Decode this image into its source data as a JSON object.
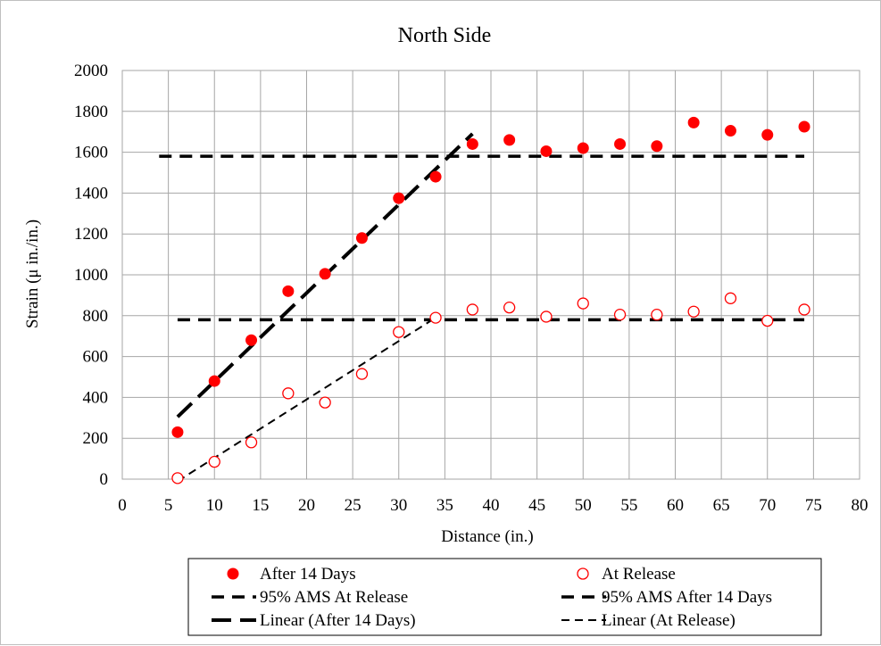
{
  "chart_data": {
    "type": "scatter",
    "title": "North Side",
    "xlabel": "Distance (in.)",
    "ylabel": "Strain (μ in./in.)",
    "xlim": [
      0,
      80
    ],
    "ylim": [
      0,
      2000
    ],
    "x_ticks": [
      0,
      5,
      10,
      15,
      20,
      25,
      30,
      35,
      40,
      45,
      50,
      55,
      60,
      65,
      70,
      75,
      80
    ],
    "y_ticks": [
      0,
      200,
      400,
      600,
      800,
      1000,
      1200,
      1400,
      1600,
      1800,
      2000
    ],
    "grid": true,
    "legend_position": "bottom",
    "series": [
      {
        "name": "After 14 Days",
        "marker": "filled-circle",
        "color": "#ff0000",
        "x": [
          6,
          10,
          14,
          18,
          22,
          26,
          30,
          34,
          38,
          42,
          46,
          50,
          54,
          58,
          62,
          66,
          70,
          74
        ],
        "y": [
          230,
          480,
          680,
          920,
          1005,
          1180,
          1375,
          1480,
          1640,
          1660,
          1605,
          1620,
          1640,
          1630,
          1745,
          1705,
          1685,
          1725
        ]
      },
      {
        "name": "At Release",
        "marker": "open-circle",
        "color": "#ff0000",
        "x": [
          6,
          10,
          14,
          18,
          22,
          26,
          30,
          34,
          38,
          42,
          46,
          50,
          54,
          58,
          62,
          66,
          70,
          74
        ],
        "y": [
          5,
          85,
          180,
          420,
          375,
          515,
          720,
          790,
          830,
          840,
          795,
          860,
          805,
          805,
          820,
          885,
          775,
          830
        ]
      },
      {
        "name": "95% AMS At Release",
        "line": "dashed",
        "color": "#000000",
        "x": [
          6,
          74
        ],
        "y": [
          780,
          780
        ]
      },
      {
        "name": "95% AMS After 14 Days",
        "line": "dashed",
        "color": "#000000",
        "x": [
          4,
          74
        ],
        "y": [
          1580,
          1580
        ]
      },
      {
        "name": "Linear (After 14 Days)",
        "line": "long-dash",
        "color": "#000000",
        "x": [
          6,
          38
        ],
        "y": [
          305,
          1690
        ]
      },
      {
        "name": "Linear (At Release)",
        "line": "short-dash",
        "color": "#000000",
        "x": [
          6,
          34
        ],
        "y": [
          -10,
          790
        ]
      }
    ]
  },
  "legend": {
    "items": [
      "After 14 Days",
      "At Release",
      "95% AMS At Release",
      "95% AMS After 14 Days",
      "Linear (After 14 Days)",
      "Linear (At Release)"
    ]
  }
}
